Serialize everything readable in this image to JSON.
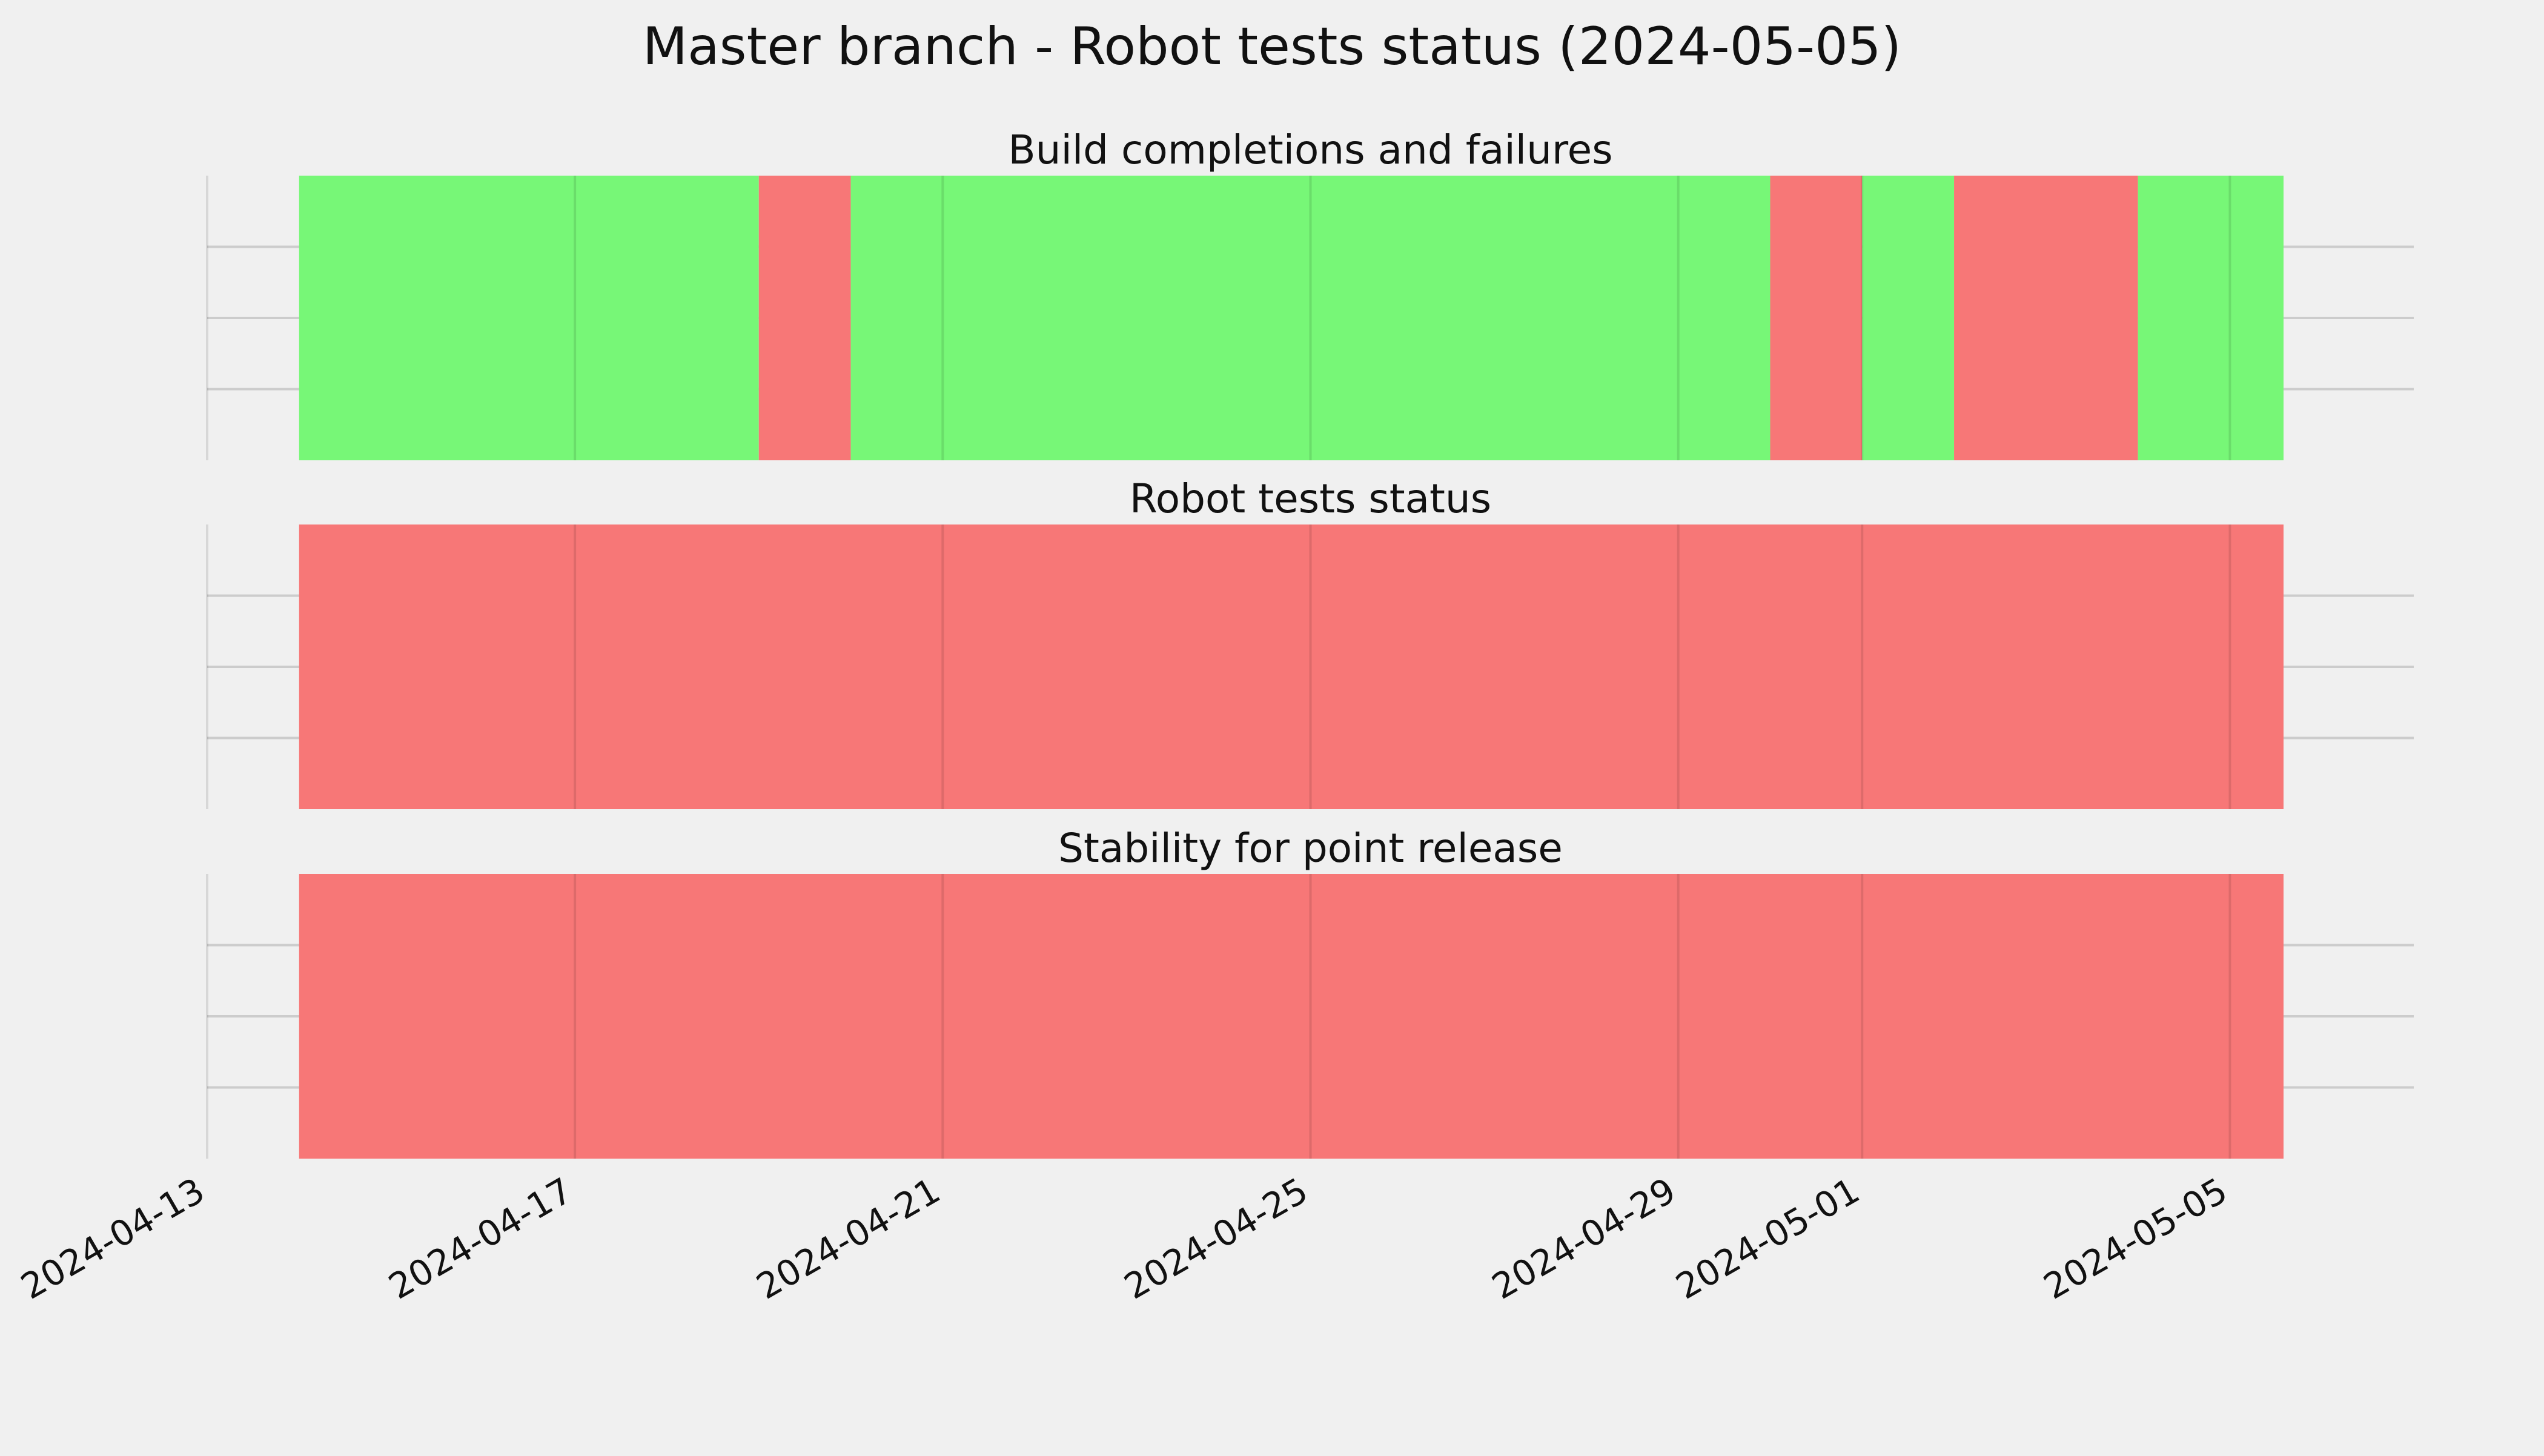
{
  "chart_data": {
    "type": "timeline",
    "title": "Master branch - Robot tests status (2024-05-05)",
    "x_axis": {
      "type": "date",
      "range": [
        "2024-04-13",
        "2024-05-07"
      ],
      "ticks": [
        "2024-04-13",
        "2024-04-17",
        "2024-04-21",
        "2024-04-25",
        "2024-04-29",
        "2024-05-01",
        "2024-05-05"
      ],
      "tick_rotation_deg": -30
    },
    "y_axis": {
      "tick_labels_visible": false,
      "gridlines": 3
    },
    "grid": true,
    "colors": {
      "success": "#77f777",
      "failure": "#f77777",
      "background": "#f0f0f0",
      "grid": "#cccccc",
      "text": "#111111"
    },
    "panels": [
      {
        "title": "Build completions and failures",
        "segments": [
          {
            "start": "2024-04-14",
            "end": "2024-04-19",
            "status": "success"
          },
          {
            "start": "2024-04-19",
            "end": "2024-04-20",
            "status": "failure"
          },
          {
            "start": "2024-04-20",
            "end": "2024-04-30",
            "status": "success"
          },
          {
            "start": "2024-04-30",
            "end": "2024-05-01",
            "status": "failure"
          },
          {
            "start": "2024-05-01",
            "end": "2024-05-02",
            "status": "success"
          },
          {
            "start": "2024-05-02",
            "end": "2024-05-04",
            "status": "failure"
          },
          {
            "start": "2024-05-04",
            "end": "2024-05-05T14:00",
            "status": "success"
          }
        ]
      },
      {
        "title": "Robot tests status",
        "segments": [
          {
            "start": "2024-04-14",
            "end": "2024-05-05T14:00",
            "status": "failure"
          }
        ]
      },
      {
        "title": "Stability for point release",
        "segments": [
          {
            "start": "2024-04-14",
            "end": "2024-05-05T14:00",
            "status": "failure"
          }
        ]
      }
    ]
  }
}
